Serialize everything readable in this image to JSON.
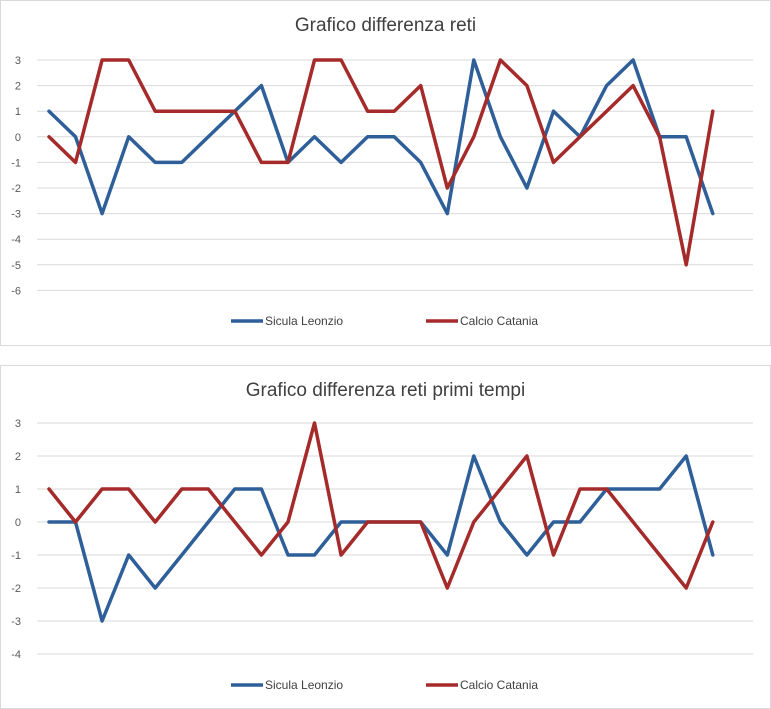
{
  "chart_data": [
    {
      "type": "line",
      "title": "Grafico differenza reti",
      "xlabel": "",
      "ylabel": "",
      "ylim": [
        -6,
        3
      ],
      "y_ticks": [
        3,
        2,
        1,
        0,
        -1,
        -2,
        -3,
        -4,
        -5,
        -6
      ],
      "grid": true,
      "legend_position": "bottom",
      "x": [
        1,
        2,
        3,
        4,
        5,
        6,
        7,
        8,
        9,
        10,
        11,
        12,
        13,
        14,
        15,
        16,
        17,
        18,
        19,
        20,
        21,
        22,
        23,
        24,
        25,
        26
      ],
      "series": [
        {
          "name": "Sicula Leonzio",
          "color": "#2E5F99",
          "values": [
            1,
            0,
            -3,
            0,
            -1,
            -1,
            0,
            1,
            2,
            -1,
            0,
            -1,
            0,
            0,
            -1,
            -3,
            3,
            0,
            -2,
            1,
            0,
            2,
            3,
            0,
            0,
            -3
          ]
        },
        {
          "name": "Calcio Catania",
          "color": "#A52A2A",
          "values": [
            0,
            -1,
            3,
            3,
            1,
            1,
            1,
            1,
            -1,
            -1,
            3,
            3,
            1,
            1,
            2,
            -2,
            0,
            3,
            2,
            -1,
            0,
            1,
            2,
            0,
            -5,
            1
          ]
        }
      ]
    },
    {
      "type": "line",
      "title": "Grafico differenza reti primi tempi",
      "xlabel": "",
      "ylabel": "",
      "ylim": [
        -4,
        3
      ],
      "y_ticks": [
        3,
        2,
        1,
        0,
        -1,
        -2,
        -3,
        -4
      ],
      "grid": true,
      "legend_position": "bottom",
      "x": [
        1,
        2,
        3,
        4,
        5,
        6,
        7,
        8,
        9,
        10,
        11,
        12,
        13,
        14,
        15,
        16,
        17,
        18,
        19,
        20,
        21,
        22,
        23,
        24,
        25,
        26
      ],
      "series": [
        {
          "name": "Sicula Leonzio",
          "color": "#2E5F99",
          "values": [
            0,
            0,
            -3,
            -1,
            -2,
            -1,
            0,
            1,
            1,
            -1,
            -1,
            0,
            0,
            0,
            0,
            -1,
            2,
            0,
            -1,
            0,
            0,
            1,
            1,
            1,
            2,
            -1
          ]
        },
        {
          "name": "Calcio Catania",
          "color": "#A52A2A",
          "values": [
            1,
            0,
            1,
            1,
            0,
            1,
            1,
            0,
            -1,
            0,
            3,
            -1,
            0,
            0,
            0,
            -2,
            0,
            1,
            2,
            -1,
            1,
            1,
            0,
            -1,
            -2,
            0
          ]
        }
      ]
    }
  ]
}
